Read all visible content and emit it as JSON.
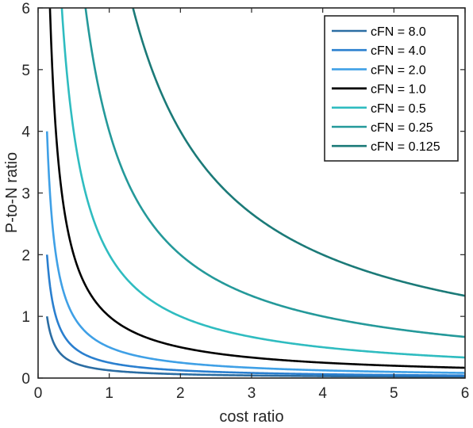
{
  "chart_data": {
    "type": "line",
    "xlabel": "cost ratio",
    "ylabel": "P-to-N ratio",
    "xlim": [
      0,
      6
    ],
    "ylim": [
      0,
      6
    ],
    "x_ticks": [
      "0",
      "1",
      "2",
      "3",
      "4",
      "5",
      "6"
    ],
    "y_ticks": [
      "0",
      "1",
      "2",
      "3",
      "4",
      "5",
      "6"
    ],
    "grid": false,
    "legend_position": "top-right",
    "x_start": 0.125,
    "x_end": 6,
    "series": [
      {
        "name": "cFN = 8.0",
        "color": "#2b6da3",
        "k": 0.125
      },
      {
        "name": "cFN = 4.0",
        "color": "#2a7fcf",
        "k": 0.25
      },
      {
        "name": "cFN = 2.0",
        "color": "#3fa0e6",
        "k": 0.5
      },
      {
        "name": "cFN = 1.0",
        "color": "#000000",
        "k": 1.0
      },
      {
        "name": "cFN = 0.5",
        "color": "#2fbcc0",
        "k": 2.0
      },
      {
        "name": "cFN = 0.25",
        "color": "#24999a",
        "k": 4.0
      },
      {
        "name": "cFN = 0.125",
        "color": "#1b7a78",
        "k": 8.0
      }
    ]
  }
}
